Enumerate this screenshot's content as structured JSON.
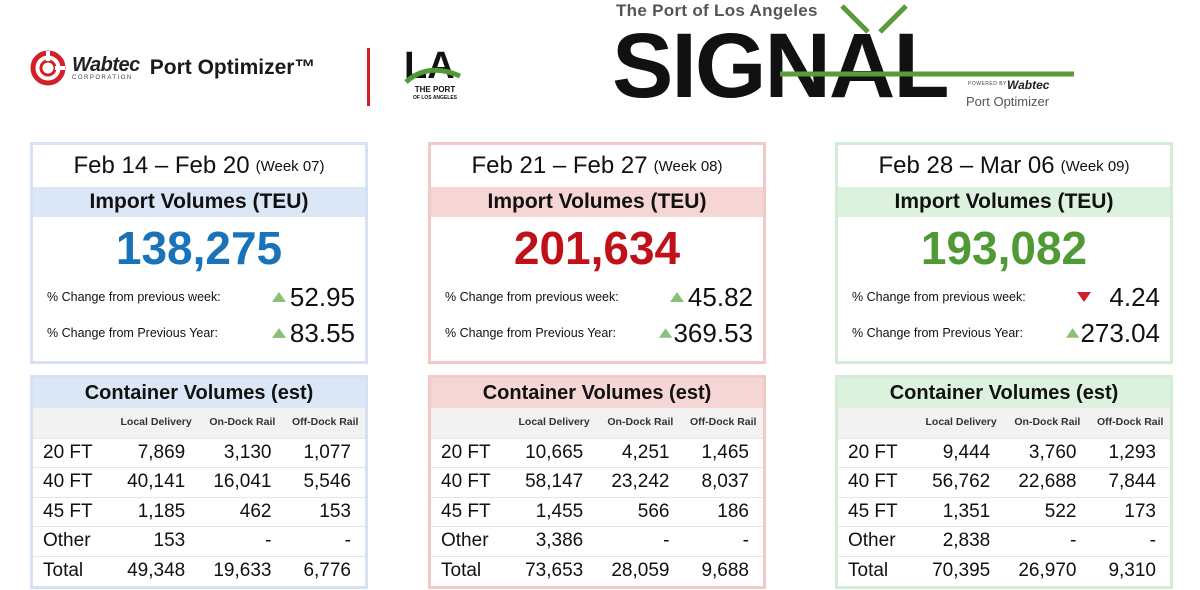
{
  "header": {
    "wabtec_name": "Wabtec",
    "wabtec_corp": "CORPORATION",
    "product_title": "Port Optimizer™",
    "la_line1": "THE PORT",
    "la_line2": "OF LOS ANGELES",
    "signal_subtitle": "The Port of Los Angeles",
    "signal_word": "SIGNAL",
    "powered_by": "POWERED BY",
    "powered_brand": "Wabtec",
    "powered_product": "Port Optimizer",
    "colors": {
      "wabtec_red": "#d32027",
      "signal_green": "#5a9a3a"
    }
  },
  "labels": {
    "import_volumes": "Import Volumes (TEU)",
    "change_prev_week": "% Change from previous week:",
    "change_prev_year": "% Change from Previous Year:",
    "container_volumes": "Container Volumes (est)",
    "col_local": "Local Delivery",
    "col_ondock": "On-Dock Rail",
    "col_offdock": "Off-Dock Rail"
  },
  "weeks": [
    {
      "range": "Feb 14 – Feb 20",
      "week": "(Week 07)",
      "teu": "138,275",
      "prev_week_change": "52.95",
      "prev_week_direction": "up",
      "prev_year_change": "83.55",
      "prev_year_direction": "up",
      "color": "#1a73b8",
      "border": "#d6e2f3",
      "accent_bg": "#dce7f6",
      "rows": [
        {
          "label": "20 FT",
          "local": "7,869",
          "ondock": "3,130",
          "offdock": "1,077"
        },
        {
          "label": "40 FT",
          "local": "40,141",
          "ondock": "16,041",
          "offdock": "5,546"
        },
        {
          "label": "45 FT",
          "local": "1,185",
          "ondock": "462",
          "offdock": "153"
        },
        {
          "label": "Other",
          "local": "153",
          "ondock": "-",
          "offdock": "-"
        },
        {
          "label": "Total",
          "local": "49,348",
          "ondock": "19,633",
          "offdock": "6,776"
        }
      ]
    },
    {
      "range": "Feb 21 – Feb 27",
      "week": "(Week 08)",
      "teu": "201,634",
      "prev_week_change": "45.82",
      "prev_week_direction": "up",
      "prev_year_change": "369.53",
      "prev_year_direction": "up",
      "color": "#c0111a",
      "border": "#f1c9c9",
      "accent_bg": "#f6d5d5",
      "rows": [
        {
          "label": "20 FT",
          "local": "10,665",
          "ondock": "4,251",
          "offdock": "1,465"
        },
        {
          "label": "40 FT",
          "local": "58,147",
          "ondock": "23,242",
          "offdock": "8,037"
        },
        {
          "label": "45 FT",
          "local": "1,455",
          "ondock": "566",
          "offdock": "186"
        },
        {
          "label": "Other",
          "local": "3,386",
          "ondock": "-",
          "offdock": "-"
        },
        {
          "label": "Total",
          "local": "73,653",
          "ondock": "28,059",
          "offdock": "9,688"
        }
      ]
    },
    {
      "range": "Feb 28 – Mar 06",
      "week": "(Week 09)",
      "teu": "193,082",
      "prev_week_change": "4.24",
      "prev_week_direction": "down",
      "prev_year_change": "273.04",
      "prev_year_direction": "up",
      "color": "#4f9a35",
      "border": "#d3ecd5",
      "accent_bg": "#dcf1de",
      "rows": [
        {
          "label": "20 FT",
          "local": "9,444",
          "ondock": "3,760",
          "offdock": "1,293"
        },
        {
          "label": "40 FT",
          "local": "56,762",
          "ondock": "22,688",
          "offdock": "7,844"
        },
        {
          "label": "45 FT",
          "local": "1,351",
          "ondock": "522",
          "offdock": "173"
        },
        {
          "label": "Other",
          "local": "2,838",
          "ondock": "-",
          "offdock": "-"
        },
        {
          "label": "Total",
          "local": "70,395",
          "ondock": "26,970",
          "offdock": "9,310"
        }
      ]
    }
  ]
}
